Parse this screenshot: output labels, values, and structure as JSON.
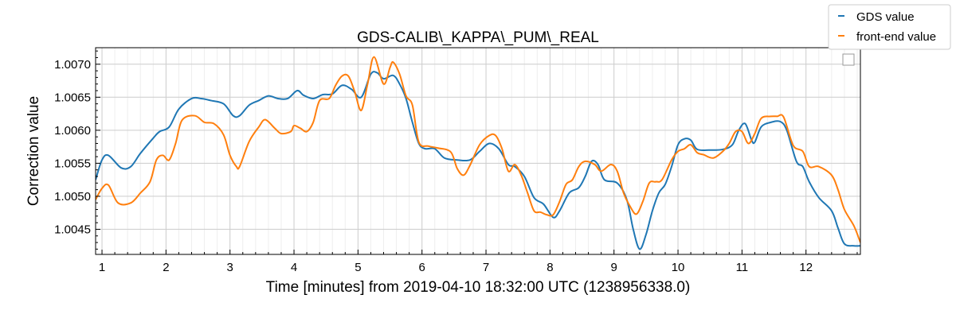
{
  "chart_data": {
    "type": "line",
    "title": "GDS-CALIB\\_KAPPA\\_PUM\\_REAL",
    "xlabel": "Time [minutes] from 2019-04-10 18:32:00 UTC (1238956338.0)",
    "ylabel": "Correction value",
    "xlim": [
      0.9,
      12.85
    ],
    "ylim": [
      1.00412,
      1.00725
    ],
    "x_ticks": [
      1,
      2,
      3,
      4,
      5,
      6,
      7,
      8,
      9,
      10,
      11,
      12
    ],
    "x_tick_labels": [
      "1",
      "2",
      "3",
      "4",
      "5",
      "6",
      "7",
      "8",
      "9",
      "10",
      "11",
      "12"
    ],
    "y_ticks": [
      1.0045,
      1.005,
      1.0055,
      1.006,
      1.0065,
      1.007
    ],
    "y_tick_labels": [
      "1.0045",
      "1.0050",
      "1.0055",
      "1.0060",
      "1.0065",
      "1.0070"
    ],
    "grid": true,
    "legend_placement": "top-right, outside",
    "series": [
      {
        "name": "GDS value",
        "color": "#1f77b4",
        "points": [
          [
            0.9,
            1.00525
          ],
          [
            1.0,
            1.00555
          ],
          [
            1.1,
            1.00562
          ],
          [
            1.3,
            1.00543
          ],
          [
            1.45,
            1.00545
          ],
          [
            1.6,
            1.00565
          ],
          [
            1.8,
            1.00588
          ],
          [
            1.9,
            1.00598
          ],
          [
            2.05,
            1.00605
          ],
          [
            2.2,
            1.00632
          ],
          [
            2.4,
            1.00648
          ],
          [
            2.55,
            1.00648
          ],
          [
            2.7,
            1.00645
          ],
          [
            2.9,
            1.0064
          ],
          [
            3.05,
            1.00622
          ],
          [
            3.15,
            1.00622
          ],
          [
            3.3,
            1.00638
          ],
          [
            3.45,
            1.00645
          ],
          [
            3.6,
            1.00652
          ],
          [
            3.75,
            1.00648
          ],
          [
            3.9,
            1.00648
          ],
          [
            4.05,
            1.0066
          ],
          [
            4.15,
            1.00653
          ],
          [
            4.3,
            1.00648
          ],
          [
            4.45,
            1.00654
          ],
          [
            4.6,
            1.00655
          ],
          [
            4.75,
            1.00668
          ],
          [
            4.9,
            1.00662
          ],
          [
            5.05,
            1.0065
          ],
          [
            5.2,
            1.00685
          ],
          [
            5.3,
            1.00687
          ],
          [
            5.4,
            1.00678
          ],
          [
            5.55,
            1.00683
          ],
          [
            5.65,
            1.0067
          ],
          [
            5.75,
            1.00648
          ],
          [
            5.85,
            1.00612
          ],
          [
            5.95,
            1.0058
          ],
          [
            6.05,
            1.00572
          ],
          [
            6.2,
            1.00572
          ],
          [
            6.35,
            1.00558
          ],
          [
            6.55,
            1.00555
          ],
          [
            6.75,
            1.00555
          ],
          [
            6.9,
            1.00568
          ],
          [
            7.05,
            1.0058
          ],
          [
            7.2,
            1.00572
          ],
          [
            7.35,
            1.00548
          ],
          [
            7.45,
            1.00545
          ],
          [
            7.6,
            1.0053
          ],
          [
            7.75,
            1.00498
          ],
          [
            7.9,
            1.00488
          ],
          [
            8.05,
            1.00468
          ],
          [
            8.15,
            1.00478
          ],
          [
            8.3,
            1.00505
          ],
          [
            8.45,
            1.00513
          ],
          [
            8.55,
            1.0053
          ],
          [
            8.65,
            1.00553
          ],
          [
            8.75,
            1.00548
          ],
          [
            8.85,
            1.00525
          ],
          [
            9.05,
            1.0052
          ],
          [
            9.2,
            1.00495
          ],
          [
            9.3,
            1.0045
          ],
          [
            9.4,
            1.0042
          ],
          [
            9.5,
            1.00442
          ],
          [
            9.6,
            1.00478
          ],
          [
            9.7,
            1.00505
          ],
          [
            9.8,
            1.00518
          ],
          [
            9.9,
            1.00545
          ],
          [
            10.0,
            1.00578
          ],
          [
            10.1,
            1.00587
          ],
          [
            10.2,
            1.00585
          ],
          [
            10.3,
            1.00571
          ],
          [
            10.5,
            1.0057
          ],
          [
            10.7,
            1.00571
          ],
          [
            10.85,
            1.00578
          ],
          [
            10.95,
            1.006
          ],
          [
            11.05,
            1.0061
          ],
          [
            11.15,
            1.00585
          ],
          [
            11.2,
            1.00582
          ],
          [
            11.3,
            1.00605
          ],
          [
            11.45,
            1.00612
          ],
          [
            11.6,
            1.00613
          ],
          [
            11.7,
            1.006
          ],
          [
            11.85,
            1.00553
          ],
          [
            11.95,
            1.00545
          ],
          [
            12.05,
            1.00522
          ],
          [
            12.2,
            1.00498
          ],
          [
            12.4,
            1.00478
          ],
          [
            12.5,
            1.00452
          ],
          [
            12.6,
            1.00428
          ],
          [
            12.75,
            1.00425
          ],
          [
            12.85,
            1.00425
          ]
        ]
      },
      {
        "name": "front-end value",
        "color": "#ff7f0e",
        "points": [
          [
            0.9,
            1.00495
          ],
          [
            1.0,
            1.00512
          ],
          [
            1.1,
            1.00517
          ],
          [
            1.25,
            1.0049
          ],
          [
            1.45,
            1.0049
          ],
          [
            1.6,
            1.00505
          ],
          [
            1.75,
            1.00522
          ],
          [
            1.85,
            1.00555
          ],
          [
            1.95,
            1.00562
          ],
          [
            2.05,
            1.00555
          ],
          [
            2.15,
            1.0058
          ],
          [
            2.25,
            1.00615
          ],
          [
            2.45,
            1.00622
          ],
          [
            2.6,
            1.00612
          ],
          [
            2.75,
            1.0061
          ],
          [
            2.9,
            1.00593
          ],
          [
            3.0,
            1.00562
          ],
          [
            3.1,
            1.00545
          ],
          [
            3.15,
            1.00545
          ],
          [
            3.3,
            1.00583
          ],
          [
            3.45,
            1.00605
          ],
          [
            3.55,
            1.00616
          ],
          [
            3.7,
            1.00603
          ],
          [
            3.8,
            1.00595
          ],
          [
            3.95,
            1.00598
          ],
          [
            4.0,
            1.00607
          ],
          [
            4.1,
            1.00603
          ],
          [
            4.2,
            1.00598
          ],
          [
            4.3,
            1.00612
          ],
          [
            4.4,
            1.00645
          ],
          [
            4.55,
            1.00648
          ],
          [
            4.65,
            1.00668
          ],
          [
            4.75,
            1.00682
          ],
          [
            4.85,
            1.00682
          ],
          [
            4.95,
            1.00658
          ],
          [
            5.05,
            1.0063
          ],
          [
            5.15,
            1.0067
          ],
          [
            5.25,
            1.00711
          ],
          [
            5.4,
            1.0067
          ],
          [
            5.5,
            1.00695
          ],
          [
            5.55,
            1.00703
          ],
          [
            5.65,
            1.00685
          ],
          [
            5.75,
            1.00652
          ],
          [
            5.85,
            1.00638
          ],
          [
            5.95,
            1.00582
          ],
          [
            6.1,
            1.00576
          ],
          [
            6.25,
            1.00573
          ],
          [
            6.45,
            1.00567
          ],
          [
            6.55,
            1.00542
          ],
          [
            6.65,
            1.00532
          ],
          [
            6.75,
            1.00547
          ],
          [
            6.9,
            1.00578
          ],
          [
            7.05,
            1.00592
          ],
          [
            7.15,
            1.00592
          ],
          [
            7.25,
            1.00572
          ],
          [
            7.35,
            1.00538
          ],
          [
            7.45,
            1.00548
          ],
          [
            7.55,
            1.00532
          ],
          [
            7.65,
            1.00505
          ],
          [
            7.75,
            1.00478
          ],
          [
            7.85,
            1.00476
          ],
          [
            7.95,
            1.00472
          ],
          [
            8.05,
            1.00472
          ],
          [
            8.15,
            1.00492
          ],
          [
            8.25,
            1.00518
          ],
          [
            8.35,
            1.00525
          ],
          [
            8.45,
            1.00545
          ],
          [
            8.55,
            1.00553
          ],
          [
            8.7,
            1.00548
          ],
          [
            8.8,
            1.00538
          ],
          [
            8.95,
            1.00548
          ],
          [
            9.05,
            1.00538
          ],
          [
            9.15,
            1.00505
          ],
          [
            9.25,
            1.00485
          ],
          [
            9.35,
            1.00473
          ],
          [
            9.45,
            1.00492
          ],
          [
            9.55,
            1.0052
          ],
          [
            9.65,
            1.00522
          ],
          [
            9.75,
            1.00525
          ],
          [
            9.9,
            1.00555
          ],
          [
            10.0,
            1.00568
          ],
          [
            10.1,
            1.00572
          ],
          [
            10.2,
            1.00578
          ],
          [
            10.3,
            1.00566
          ],
          [
            10.4,
            1.00563
          ],
          [
            10.55,
            1.00558
          ],
          [
            10.7,
            1.00568
          ],
          [
            10.8,
            1.0058
          ],
          [
            10.9,
            1.00598
          ],
          [
            11.0,
            1.00598
          ],
          [
            11.1,
            1.0058
          ],
          [
            11.2,
            1.00595
          ],
          [
            11.3,
            1.00618
          ],
          [
            11.45,
            1.00621
          ],
          [
            11.55,
            1.00621
          ],
          [
            11.65,
            1.0062
          ],
          [
            11.8,
            1.00577
          ],
          [
            11.95,
            1.00568
          ],
          [
            12.05,
            1.00545
          ],
          [
            12.2,
            1.00545
          ],
          [
            12.4,
            1.00532
          ],
          [
            12.5,
            1.0051
          ],
          [
            12.6,
            1.0048
          ],
          [
            12.75,
            1.00455
          ],
          [
            12.85,
            1.0043
          ]
        ]
      }
    ]
  }
}
